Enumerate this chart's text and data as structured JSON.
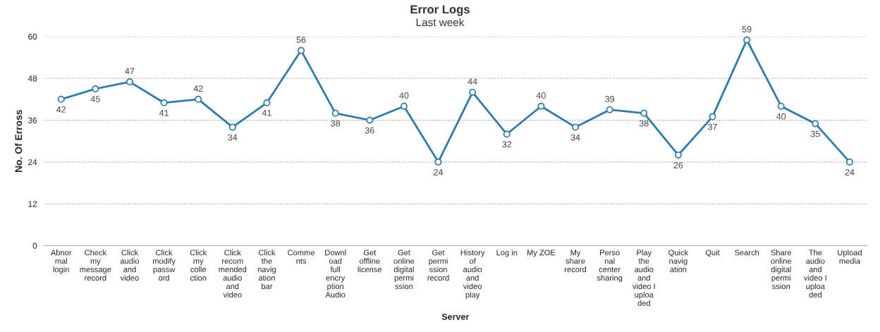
{
  "chart_data": {
    "type": "line",
    "title": "Error Logs",
    "subtitle": "Last week",
    "xlabel": "Server",
    "ylabel": "No. Of Erross",
    "categories": [
      "Abnormal login",
      "Check my message record",
      "Click audio and video",
      "Click modify password",
      "Click my collection",
      "Click recommended audio and video",
      "Click the navigation bar",
      "Comments",
      "Download full encryption Audio",
      "Get offline license",
      "Get online digital permission",
      "Get permission record",
      "History of audio and video play",
      "Log in",
      "My ZOE",
      "My share record",
      "Personal center sharing",
      "Play the audio and video I uploaded",
      "Quick navigation",
      "Quit",
      "Search",
      "Share online digital permission",
      "The audio and video I uploaded",
      "Upload media"
    ],
    "series": [
      {
        "color": "#2b7bb0",
        "values": [
          42,
          45,
          47,
          41,
          42,
          34,
          41,
          56,
          38,
          36,
          40,
          24,
          44,
          32,
          40,
          34,
          39,
          38,
          26,
          37,
          59,
          40,
          35,
          24
        ]
      }
    ],
    "ylim": [
      0,
      60
    ],
    "yticks": [
      0,
      12,
      24,
      36,
      48,
      60
    ],
    "grid": "y",
    "marker": "circle",
    "line_style": "solid",
    "data_labels": true,
    "legend": false
  }
}
